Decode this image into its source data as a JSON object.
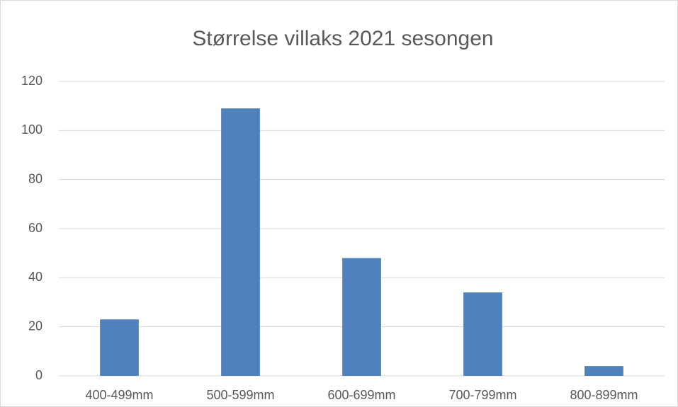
{
  "chart_data": {
    "type": "bar",
    "title": "Størrelse villaks 2021 sesongen",
    "categories": [
      "400-499mm",
      "500-599mm",
      "600-699mm",
      "700-799mm",
      "800-899mm"
    ],
    "values": [
      23,
      109,
      48,
      34,
      4
    ],
    "color": "#4f81bd",
    "ylim": [
      0,
      120
    ],
    "yticks": [
      0,
      20,
      40,
      60,
      80,
      100,
      120
    ],
    "grid": true
  }
}
